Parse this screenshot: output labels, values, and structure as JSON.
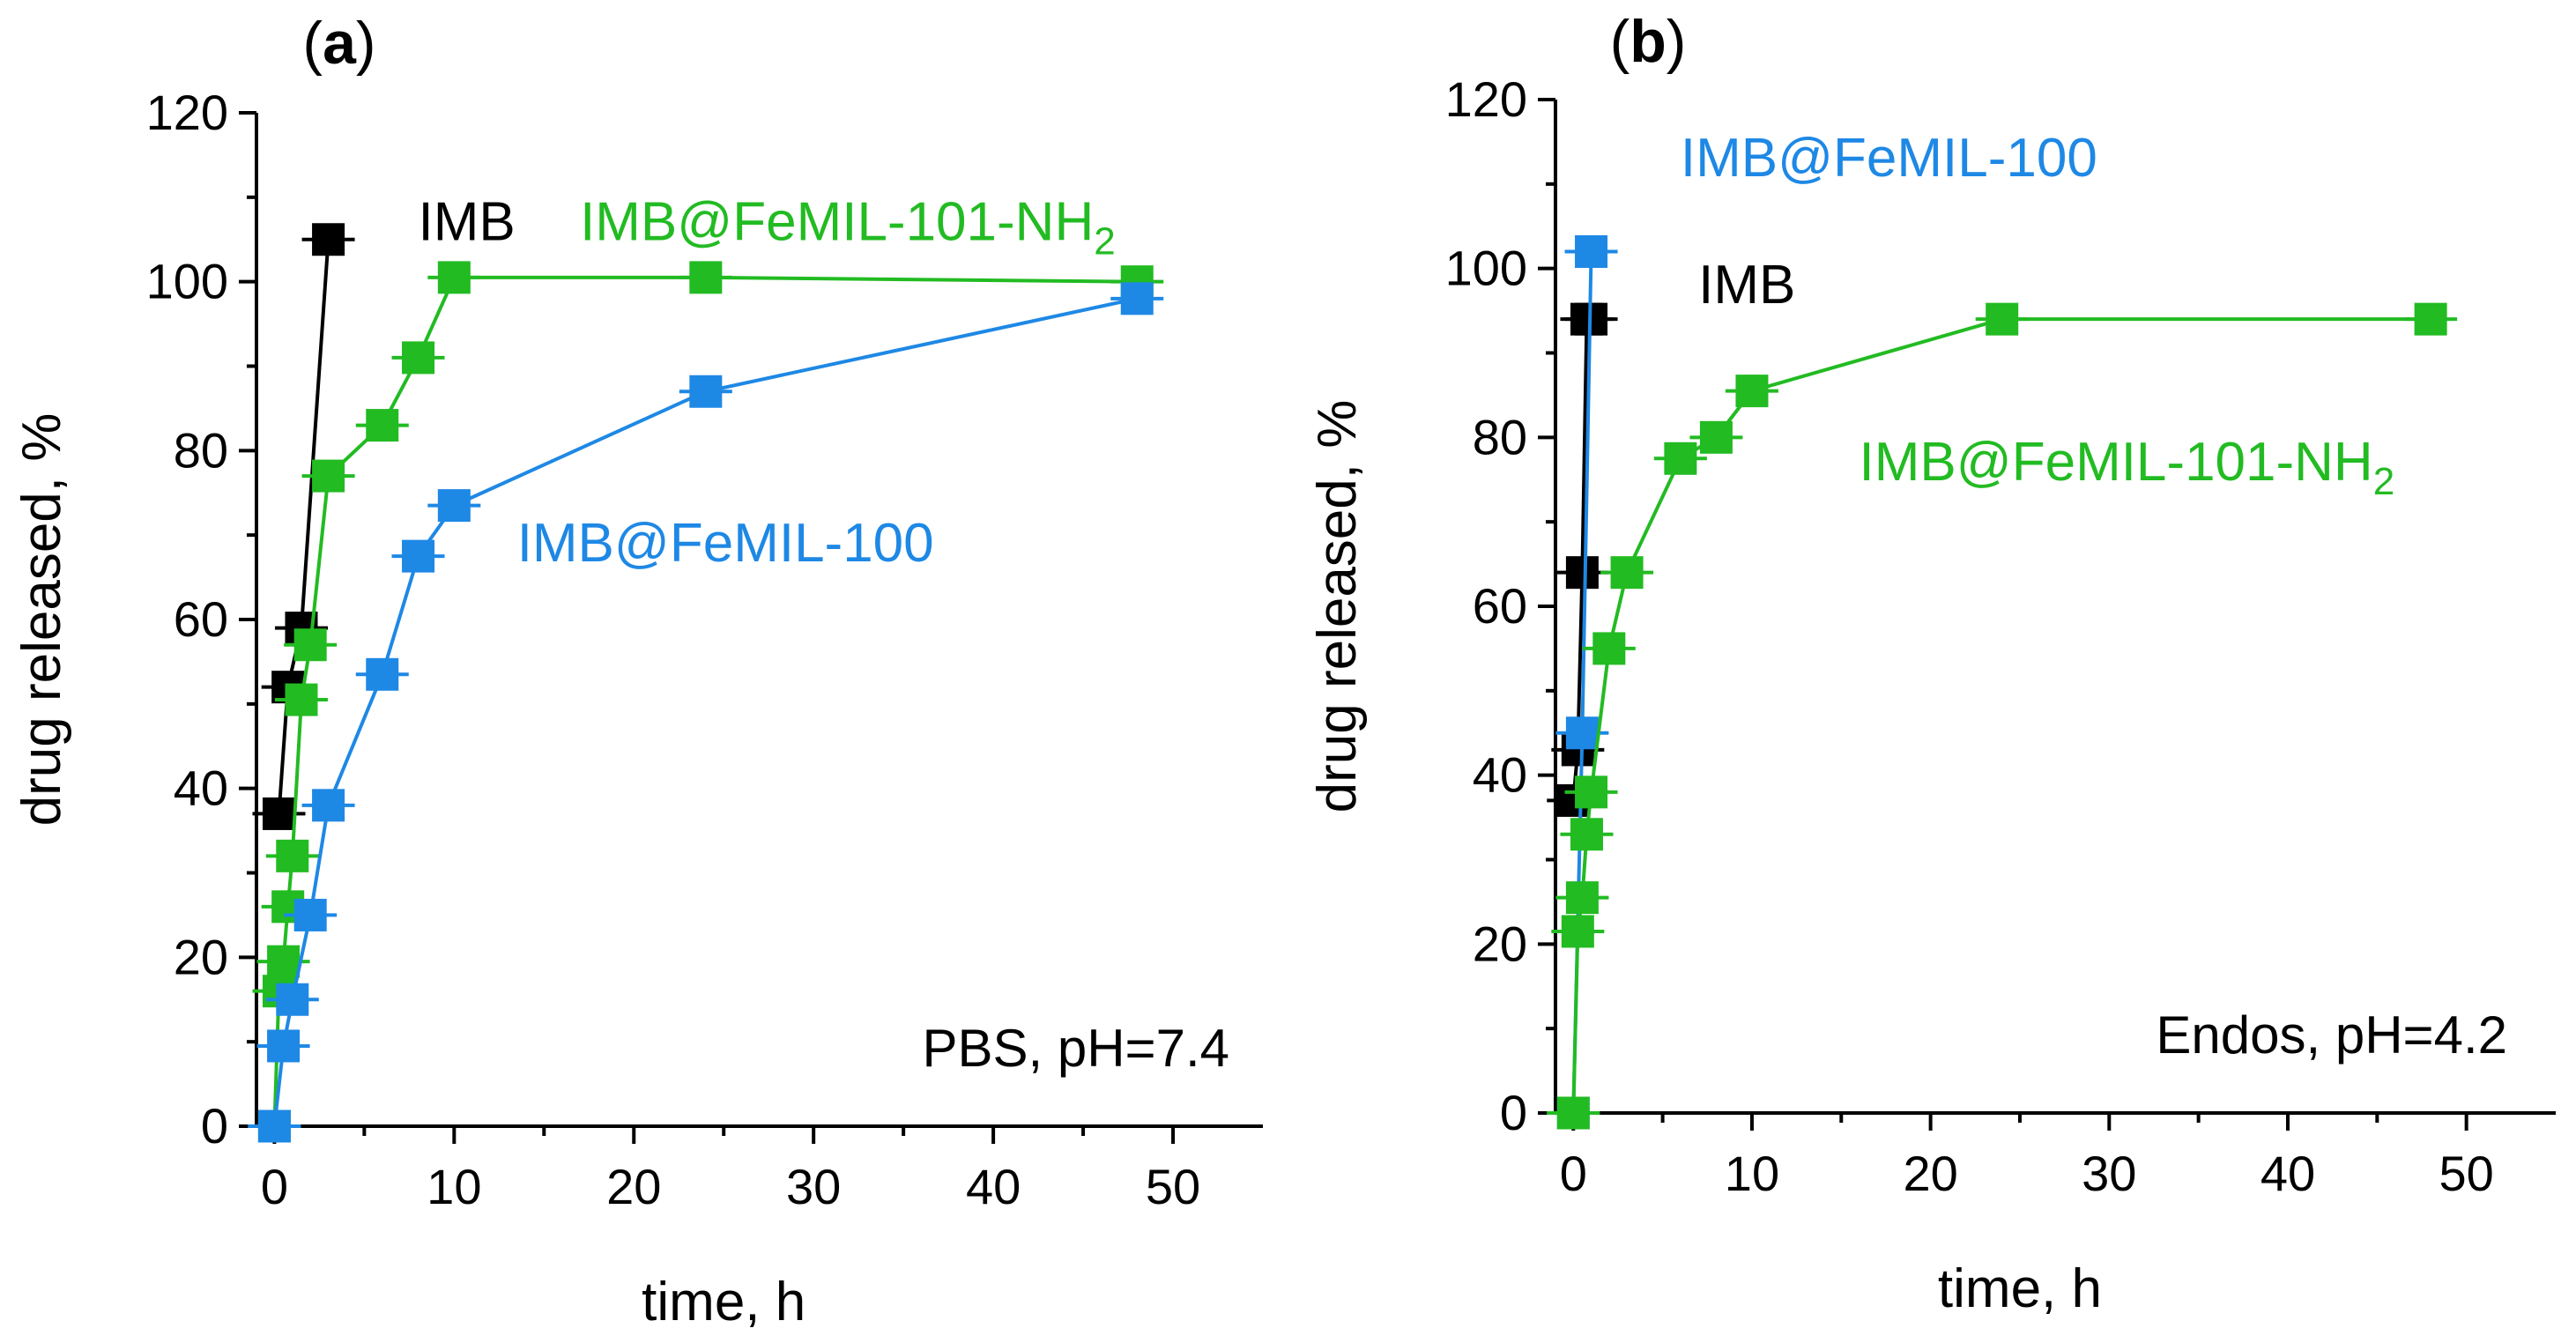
{
  "chart_data": [
    {
      "type": "line",
      "panel_label": "(a)",
      "xlabel": "time, h",
      "ylabel": "drug released, %",
      "xlim": [
        -1,
        55
      ],
      "ylim": [
        0,
        120
      ],
      "xticks": [
        0,
        10,
        20,
        30,
        40,
        50
      ],
      "yticks": [
        0,
        20,
        40,
        60,
        80,
        100,
        120
      ],
      "annotation": "PBS, pH=7.4",
      "series": [
        {
          "name": "IMB",
          "color": "#000000",
          "x": [
            0.25,
            0.75,
            1.5,
            3
          ],
          "y": [
            37,
            52,
            59,
            105
          ],
          "label_at": [
            8,
            107
          ]
        },
        {
          "name": "IMB@FeMIL-101-NH",
          "name_subscript": "2",
          "color": "#22bb22",
          "x": [
            0,
            0.25,
            0.5,
            0.75,
            1,
            1.5,
            2,
            3,
            6,
            8,
            10,
            24,
            48
          ],
          "y": [
            0,
            16,
            19.5,
            26,
            32,
            50.5,
            57,
            77,
            83,
            91,
            100.5,
            100.5,
            100
          ],
          "label_at": [
            17,
            107
          ]
        },
        {
          "name": "IMB@FeMIL-100",
          "color": "#1e88e5",
          "x": [
            0,
            0.5,
            1,
            2,
            3,
            6,
            8,
            10,
            24,
            48
          ],
          "y": [
            0,
            9.5,
            15,
            25,
            38,
            53.5,
            67.5,
            73.5,
            87,
            98
          ],
          "label_at": [
            13.5,
            69
          ]
        }
      ]
    },
    {
      "type": "line",
      "panel_label": "(b)",
      "xlabel": "time, h",
      "ylabel": "drug released, %",
      "xlim": [
        -1,
        55
      ],
      "ylim": [
        0,
        120
      ],
      "xticks": [
        0,
        10,
        20,
        30,
        40,
        50
      ],
      "yticks": [
        0,
        20,
        40,
        60,
        80,
        100,
        120
      ],
      "annotation": "Endos, pH=4.2",
      "series": [
        {
          "name": "IMB",
          "color": "#000000",
          "x": [
            0,
            0.25,
            0.5,
            0.75,
            1
          ],
          "y": [
            37,
            43,
            64,
            94,
            94
          ],
          "label_at": [
            7,
            98
          ]
        },
        {
          "name": "IMB@FeMIL-100",
          "color": "#1e88e5",
          "x": [
            0,
            0.5,
            1
          ],
          "y": [
            0,
            45,
            102
          ],
          "label_at": [
            6,
            113
          ]
        },
        {
          "name": "IMB@FeMIL-101-NH",
          "name_subscript": "2",
          "color": "#22bb22",
          "x": [
            0,
            0.25,
            0.5,
            0.75,
            1,
            2,
            3,
            6,
            8,
            10,
            24,
            48
          ],
          "y": [
            0,
            21.5,
            25.5,
            33,
            38,
            55,
            64,
            77.5,
            80,
            85.5,
            94,
            94
          ],
          "label_at": [
            16,
            77
          ]
        }
      ]
    }
  ]
}
